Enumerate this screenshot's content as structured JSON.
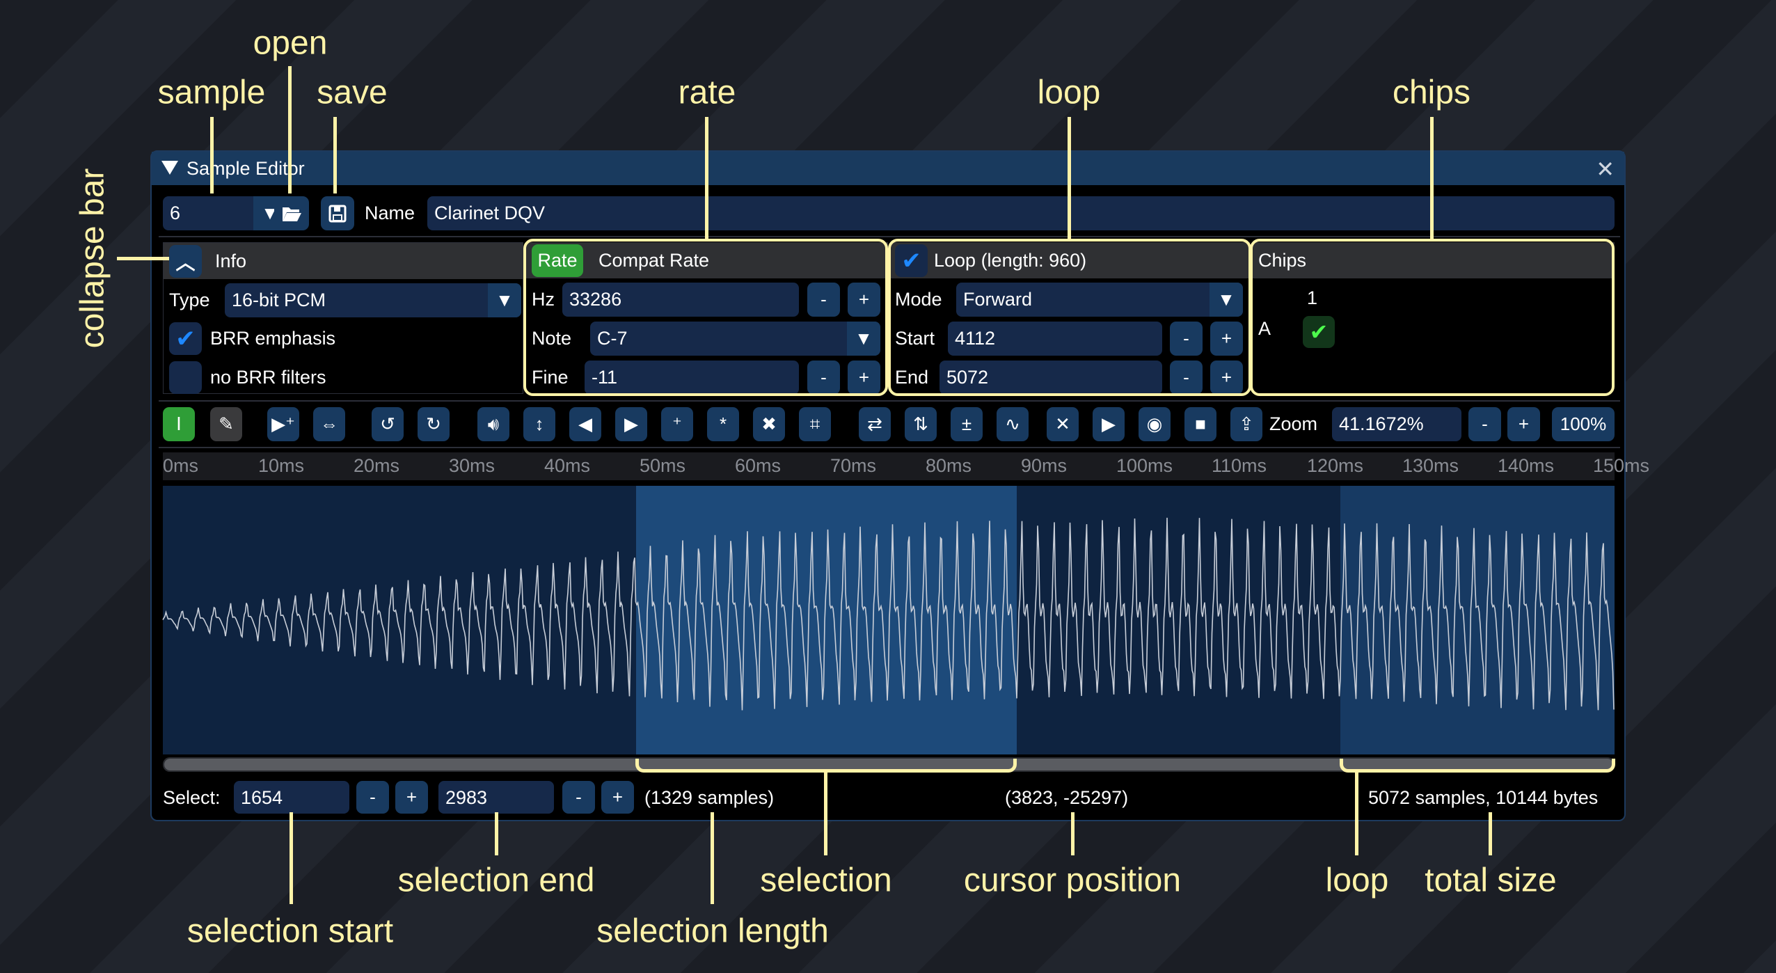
{
  "window": {
    "title": "Sample Editor",
    "close_icon": "close-icon"
  },
  "sample_row": {
    "sample_index": "6",
    "name_label": "Name",
    "name_value": "Clarinet DQV"
  },
  "info": {
    "title": "Info",
    "type_label": "Type",
    "type_value": "16-bit PCM",
    "brr_emphasis": {
      "label": "BRR emphasis",
      "checked": true
    },
    "no_brr_filters": {
      "label": "no BRR filters",
      "checked": false
    }
  },
  "rate": {
    "tab_active": "Rate",
    "tab_other": "Compat Rate",
    "hz_label": "Hz",
    "hz_value": "33286",
    "note_label": "Note",
    "note_value": "C-7",
    "fine_label": "Fine",
    "fine_value": "-11",
    "minus": "-",
    "plus": "+"
  },
  "loop": {
    "title": "Loop (length: 960)",
    "enabled": true,
    "mode_label": "Mode",
    "mode_value": "Forward",
    "start_label": "Start",
    "start_value": "4112",
    "end_label": "End",
    "end_value": "5072"
  },
  "chips": {
    "title": "Chips",
    "column": "1",
    "row": "A",
    "checked": true
  },
  "toolbar": {
    "zoom_label": "Zoom",
    "zoom_value": "41.1672%",
    "zoom_minus": "-",
    "zoom_plus": "+",
    "zoom_reset": "100%",
    "icons": [
      "select-tool-icon",
      "pencil-tool-icon",
      "amplify-icon",
      "resize-icon",
      "undo-icon",
      "redo-icon",
      "volume-icon",
      "normalize-icon",
      "fade-in-icon",
      "fade-out-icon",
      "insert-silence-icon",
      "silence-icon",
      "delete-icon",
      "crop-icon",
      "reverse-icon",
      "invert-icon",
      "sign-icon",
      "filter-icon",
      "crossfade-icon",
      "preview-icon",
      "preview-loop-icon",
      "stop-icon",
      "export-icon"
    ],
    "active_tool": "select-tool-icon"
  },
  "ruler": [
    "0ms",
    "10ms",
    "20ms",
    "30ms",
    "40ms",
    "50ms",
    "60ms",
    "70ms",
    "80ms",
    "90ms",
    "100ms",
    "110ms",
    "120ms",
    "130ms",
    "140ms",
    "150ms"
  ],
  "status": {
    "select_label": "Select:",
    "sel_start": "1654",
    "sel_end": "2983",
    "minus": "-",
    "plus": "+",
    "sel_length": "(1329 samples)",
    "cursor": "(3823, -25297)",
    "total": "5072 samples, 10144 bytes"
  },
  "annotations": {
    "open": "open",
    "sample": "sample",
    "save": "save",
    "rate": "rate",
    "loop_top": "loop",
    "chips": "chips",
    "collapse": "collapse bar",
    "selection_end": "selection end",
    "selection": "selection",
    "cursor_position": "cursor position",
    "loop_bottom": "loop",
    "total_size": "total size",
    "selection_start": "selection start",
    "selection_length": "selection length"
  },
  "colors": {
    "accent": "#193a5e",
    "button": "#183a60",
    "field": "#16294a",
    "active_green": "#2f9e37",
    "annotation": "#fff3a8",
    "selection": "#1d4a7a",
    "loop_region": "#173a63"
  }
}
